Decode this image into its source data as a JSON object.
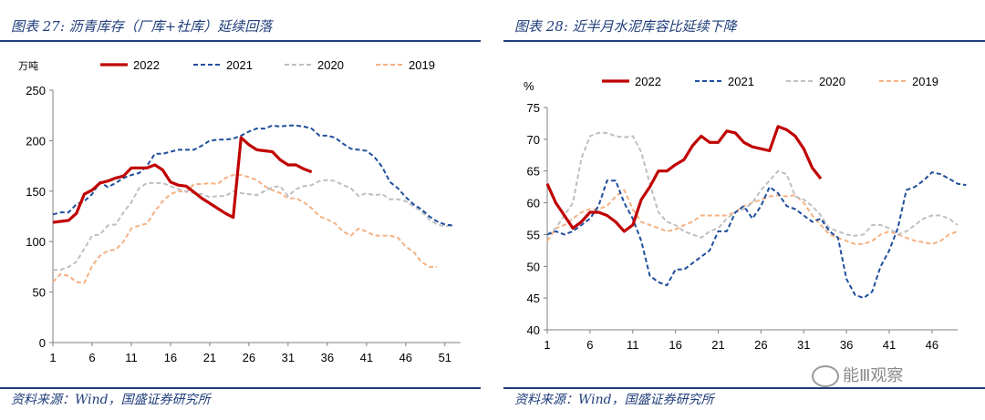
{
  "left": {
    "title": "图表 27: 沥青库存（厂库+社库）延续回落",
    "source": "资料来源：Wind，国盛证券研究所"
  },
  "right": {
    "title": "图表 28: 近半月水泥库容比延续下降",
    "source": "资料来源：Wind，国盛证券研究所"
  },
  "watermark": "能Ⅲ观察",
  "colors": {
    "s2022": "#c00000",
    "s2021": "#1f4e9c",
    "s2020": "#bfbfbf",
    "s2019": "#f4b183",
    "frame": "#1f3d7a"
  },
  "chart_data": [
    {
      "type": "line",
      "ylabel": "万吨",
      "ylim": [
        0,
        250
      ],
      "yticks": [
        0,
        50,
        100,
        150,
        200,
        250
      ],
      "xlim": [
        1,
        53
      ],
      "xticks": [
        1,
        6,
        11,
        16,
        21,
        26,
        31,
        36,
        41,
        46,
        51
      ],
      "legend": [
        "2022",
        "2021",
        "2020",
        "2019"
      ],
      "series": [
        {
          "name": "2022",
          "values": [
            119,
            120,
            121,
            128,
            147,
            151,
            158,
            160,
            163,
            165,
            173,
            173,
            173,
            176,
            171,
            159,
            156,
            155,
            149,
            143,
            138,
            133,
            128,
            124,
            203,
            196,
            191,
            190,
            189,
            181,
            176,
            176,
            172,
            169
          ]
        },
        {
          "name": "2021",
          "values": [
            127,
            129,
            129,
            137,
            140,
            147,
            159,
            154,
            158,
            163,
            166,
            168,
            175,
            187,
            187,
            189,
            191,
            191,
            191,
            195,
            200,
            201,
            201,
            202,
            205,
            209,
            212,
            212,
            215,
            214,
            215,
            215,
            214,
            212,
            205,
            205,
            203,
            197,
            192,
            191,
            190,
            184,
            174,
            159,
            153,
            144,
            137,
            132,
            125,
            120,
            117,
            116
          ]
        },
        {
          "name": "2020",
          "values": [
            72,
            72,
            75,
            80,
            93,
            106,
            107,
            116,
            117,
            129,
            139,
            153,
            158,
            158,
            158,
            155,
            152,
            150,
            148,
            147,
            144,
            145,
            145,
            150,
            148,
            147,
            146,
            150,
            154,
            155,
            145,
            152,
            155,
            156,
            160,
            161,
            160,
            156,
            153,
            145,
            148,
            146,
            147,
            142,
            142,
            140,
            135,
            130,
            122,
            117,
            115,
            116
          ]
        },
        {
          "name": "2019",
          "values": [
            60,
            68,
            66,
            60,
            59,
            76,
            86,
            91,
            92,
            100,
            113,
            116,
            118,
            130,
            140,
            147,
            150,
            149,
            157,
            157,
            158,
            157,
            163,
            166,
            166,
            164,
            161,
            155,
            151,
            148,
            143,
            143,
            139,
            133,
            125,
            122,
            118,
            110,
            106,
            113,
            110,
            106,
            106,
            106,
            104,
            95,
            90,
            80,
            75,
            75
          ]
        }
      ]
    },
    {
      "type": "line",
      "ylabel": "%",
      "ylim": [
        40,
        75
      ],
      "yticks": [
        40,
        45,
        50,
        55,
        60,
        65,
        70,
        75
      ],
      "xlim": [
        1,
        49
      ],
      "xticks": [
        1,
        6,
        11,
        16,
        21,
        26,
        31,
        36,
        41,
        46
      ],
      "legend": [
        "2022",
        "2021",
        "2020",
        "2019"
      ],
      "series": [
        {
          "name": "2022",
          "values": [
            63.0,
            60.0,
            58.0,
            56.0,
            57.0,
            58.5,
            58.5,
            58.0,
            57.0,
            55.5,
            56.5,
            60.5,
            62.5,
            65.0,
            65.0,
            66.0,
            66.8,
            69.0,
            70.5,
            69.5,
            69.5,
            71.3,
            71.0,
            69.5,
            68.8,
            68.5,
            68.2,
            72.0,
            71.5,
            70.5,
            68.5,
            65.5,
            63.8
          ]
        },
        {
          "name": "2021",
          "values": [
            55.0,
            55.5,
            55.0,
            55.5,
            56.5,
            57.5,
            59.5,
            63.5,
            63.5,
            60.0,
            57.5,
            54.0,
            48.5,
            47.5,
            47.0,
            49.5,
            49.5,
            50.5,
            51.5,
            52.5,
            55.5,
            55.5,
            58.5,
            59.5,
            57.5,
            59.5,
            62.5,
            61.5,
            59.5,
            59.0,
            58.0,
            57.0,
            57.5,
            55.5,
            54.5,
            48.0,
            45.5,
            45.0,
            46.0,
            50.0,
            52.5,
            56.0,
            62.0,
            62.5,
            63.5,
            64.8,
            64.5,
            63.8,
            63.0,
            62.8
          ]
        },
        {
          "name": "2020",
          "values": [
            55.0,
            56.0,
            58.0,
            60.0,
            67.0,
            70.5,
            71.0,
            71.0,
            70.5,
            70.3,
            70.5,
            68.0,
            63.0,
            58.5,
            57.0,
            56.5,
            55.5,
            55.0,
            54.5,
            55.5,
            56.0,
            57.5,
            58.5,
            59.0,
            60.0,
            62.0,
            63.5,
            65.0,
            64.5,
            61.0,
            60.5,
            59.5,
            58.0,
            56.0,
            55.5,
            55.0,
            54.8,
            55.0,
            56.5,
            56.5,
            56.0,
            55.0,
            55.5,
            56.5,
            57.5,
            58.0,
            58.0,
            57.5,
            56.5
          ]
        },
        {
          "name": "2019",
          "values": [
            54.0,
            56.0,
            56.5,
            57.5,
            58.5,
            59.0,
            59.0,
            59.5,
            61.0,
            62.0,
            59.0,
            57.0,
            56.5,
            56.0,
            55.5,
            55.8,
            56.5,
            57.0,
            58.0,
            58.0,
            58.0,
            58.0,
            58.5,
            59.5,
            60.0,
            60.5,
            61.0,
            61.2,
            61.0,
            61.2,
            60.0,
            58.0,
            56.5,
            55.0,
            54.5,
            54.0,
            53.5,
            53.5,
            54.0,
            55.0,
            55.5,
            55.0,
            54.5,
            54.0,
            53.8,
            53.5,
            54.0,
            55.0,
            55.5
          ]
        }
      ]
    }
  ]
}
